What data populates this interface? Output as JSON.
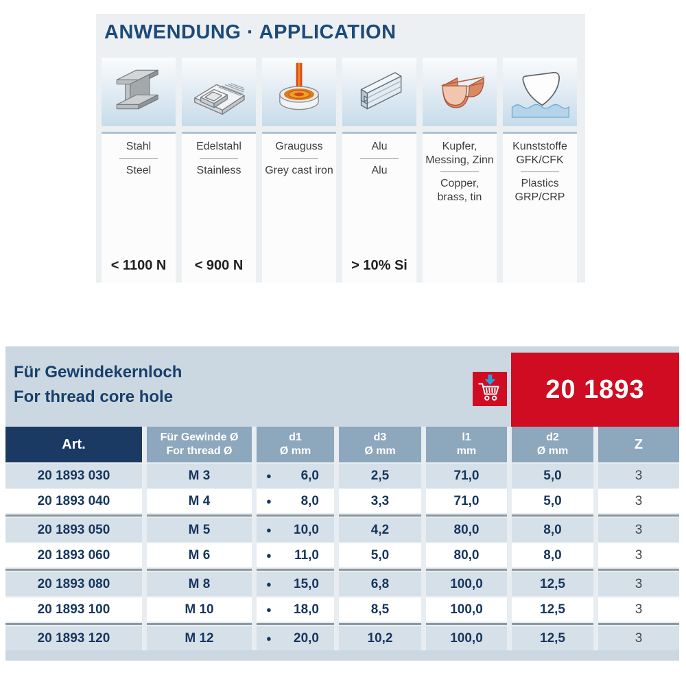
{
  "application": {
    "title": "ANWENDUNG · APPLICATION",
    "materials": [
      {
        "icon": "steel-ibeam-icon",
        "name_de": "Stahl",
        "name_en": "Steel",
        "note": "< 1100 N"
      },
      {
        "icon": "stainless-sink-icon",
        "name_de": "Edelstahl",
        "name_en": "Stainless",
        "note": "< 900 N"
      },
      {
        "icon": "grey-cast-iron-crucible-icon",
        "name_de": "Grauguss",
        "name_en": "Grey cast iron",
        "note": ""
      },
      {
        "icon": "aluminium-profile-icon",
        "name_de": "Alu",
        "name_en": "Alu",
        "note": "> 10% Si"
      },
      {
        "icon": "copper-gutter-icon",
        "name_de": "Kupfer, Messing, Zinn",
        "name_en": "Copper, brass, tin",
        "note": ""
      },
      {
        "icon": "plastics-hull-icon",
        "name_de": "Kunststoffe GFK/CFK",
        "name_en": "Plastics GRP/CRP",
        "note": ""
      }
    ]
  },
  "product": {
    "title_de": "Für Gewindekernloch",
    "title_en": "For thread core hole",
    "article_number": "20 1893",
    "cart_icon": "add-to-cart-icon"
  },
  "table": {
    "columns": [
      {
        "id": "art",
        "label_lines": [
          "Art."
        ]
      },
      {
        "id": "thread",
        "label_lines": [
          "Für Gewinde Ø",
          "For thread Ø"
        ]
      },
      {
        "id": "d1",
        "label_lines": [
          "d1",
          "Ø mm"
        ]
      },
      {
        "id": "d3",
        "label_lines": [
          "d3",
          "Ø mm"
        ]
      },
      {
        "id": "l1",
        "label_lines": [
          "l1",
          "mm"
        ]
      },
      {
        "id": "d2",
        "label_lines": [
          "d2",
          "Ø mm"
        ]
      },
      {
        "id": "z",
        "label_lines": [
          "Z"
        ]
      }
    ],
    "rows": [
      {
        "art": "20 1893 030",
        "thread": "M 3",
        "d1_dot": true,
        "d1": "6,0",
        "d3": "2,5",
        "l1": "71,0",
        "d2": "5,0",
        "z": "3"
      },
      {
        "art": "20 1893 040",
        "thread": "M 4",
        "d1_dot": true,
        "d1": "8,0",
        "d3": "3,3",
        "l1": "71,0",
        "d2": "5,0",
        "z": "3"
      },
      {
        "art": "20 1893 050",
        "thread": "M 5",
        "d1_dot": true,
        "d1": "10,0",
        "d3": "4,2",
        "l1": "80,0",
        "d2": "8,0",
        "z": "3"
      },
      {
        "art": "20 1893 060",
        "thread": "M 6",
        "d1_dot": true,
        "d1": "11,0",
        "d3": "5,0",
        "l1": "80,0",
        "d2": "8,0",
        "z": "3"
      },
      {
        "art": "20 1893 080",
        "thread": "M 8",
        "d1_dot": true,
        "d1": "15,0",
        "d3": "6,8",
        "l1": "100,0",
        "d2": "12,5",
        "z": "3"
      },
      {
        "art": "20 1893 100",
        "thread": "M 10",
        "d1_dot": true,
        "d1": "18,0",
        "d3": "8,5",
        "l1": "100,0",
        "d2": "12,5",
        "z": "3"
      },
      {
        "art": "20 1893 120",
        "thread": "M 12",
        "d1_dot": true,
        "d1": "20,0",
        "d3": "10,2",
        "l1": "100,0",
        "d2": "12,5",
        "z": "3"
      }
    ],
    "group_separators_after": [
      1,
      3,
      5
    ]
  },
  "colors": {
    "navy_text": "#16365f",
    "title_blue": "#1d4a7a",
    "header_dark_cell": "#1a3a63",
    "header_light_cell": "#8da7bd",
    "panel_bg": "#ccd8e1",
    "row_alt": "#d6e0e8",
    "accent_red": "#d00c22",
    "cart_arrow_blue": "#2aa0da"
  }
}
